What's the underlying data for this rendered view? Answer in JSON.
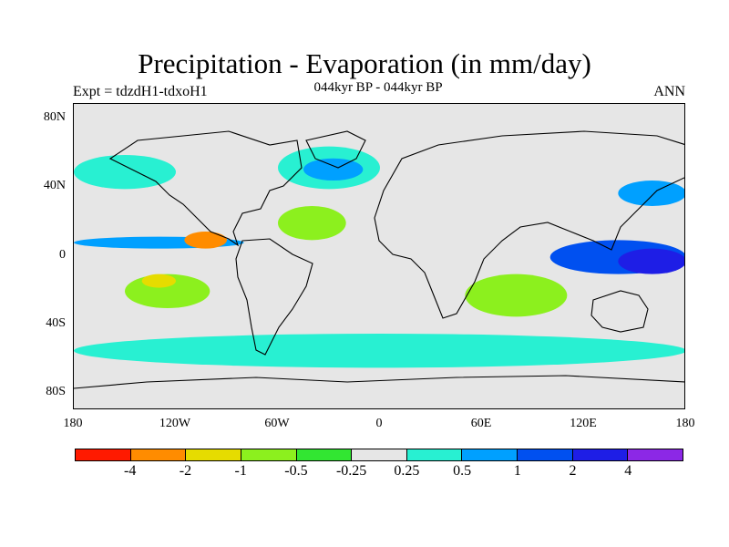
{
  "title": "Precipitation - Evaporation (in mm/day)",
  "subtitle": "044kyr BP - 044kyr BP",
  "left_label": "Expt = tdzdH1-tdxoH1",
  "right_label": "ANN",
  "lat_labels": [
    "80N",
    "40N",
    "0",
    "40S",
    "80S"
  ],
  "lon_labels": [
    "180",
    "120W",
    "60W",
    "0",
    "60E",
    "120E",
    "180"
  ],
  "colorbar": {
    "colors": [
      "#ff1a00",
      "#ff8c00",
      "#e6dc00",
      "#8cf01e",
      "#32e632",
      "#e6e6e6",
      "#28f0d2",
      "#00a0ff",
      "#0050f0",
      "#1e1ee6",
      "#8c28e6"
    ],
    "labels": [
      "-4",
      "-2",
      "-1",
      "-0.5",
      "-0.25",
      "0.25",
      "0.5",
      "1",
      "2",
      "4"
    ]
  },
  "map_data": {
    "background_color": "#e6e6e6",
    "regions": [
      {
        "name": "north-atlantic-storm-track",
        "color": "#28f0d2",
        "lon": [
          -60,
          0
        ],
        "lat": [
          40,
          65
        ]
      },
      {
        "name": "north-atlantic-core",
        "color": "#00a0ff",
        "lon": [
          -45,
          -10
        ],
        "lat": [
          45,
          58
        ]
      },
      {
        "name": "north-pacific-storm-track",
        "color": "#28f0d2",
        "lon": [
          -180,
          -120
        ],
        "lat": [
          40,
          60
        ]
      },
      {
        "name": "kuroshio",
        "color": "#00a0ff",
        "lon": [
          140,
          180
        ],
        "lat": [
          30,
          45
        ]
      },
      {
        "name": "pacific-itcz",
        "color": "#00a0ff",
        "lon": [
          -180,
          -80
        ],
        "lat": [
          5,
          12
        ]
      },
      {
        "name": "warm-pool",
        "color": "#0050f0",
        "lon": [
          100,
          180
        ],
        "lat": [
          -10,
          10
        ]
      },
      {
        "name": "spcz",
        "color": "#1e1ee6",
        "lon": [
          140,
          180
        ],
        "lat": [
          -10,
          5
        ]
      },
      {
        "name": "east-pacific-dry",
        "color": "#ff8c00",
        "lon": [
          -115,
          -90
        ],
        "lat": [
          5,
          15
        ]
      },
      {
        "name": "south-pacific-subtropics",
        "color": "#8cf01e",
        "lon": [
          -150,
          -100
        ],
        "lat": [
          -30,
          -10
        ]
      },
      {
        "name": "south-pacific-core",
        "color": "#e6dc00",
        "lon": [
          -140,
          -120
        ],
        "lat": [
          -18,
          -10
        ]
      },
      {
        "name": "south-indian-subtropics",
        "color": "#8cf01e",
        "lon": [
          50,
          110
        ],
        "lat": [
          -35,
          -10
        ]
      },
      {
        "name": "north-atlantic-subtropics",
        "color": "#8cf01e",
        "lon": [
          -60,
          -20
        ],
        "lat": [
          10,
          30
        ]
      },
      {
        "name": "southern-ocean",
        "color": "#28f0d2",
        "lon": [
          -180,
          180
        ],
        "lat": [
          -65,
          -45
        ]
      }
    ]
  }
}
